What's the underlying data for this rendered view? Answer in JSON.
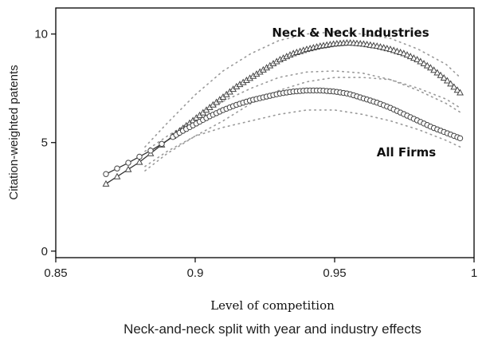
{
  "chart_data": {
    "type": "line",
    "title": "",
    "caption": "Neck-and-neck split with year and industry effects",
    "xlabel": "Level of competition",
    "ylabel": "Citation-weighted patents",
    "xlim": [
      0.85,
      1.0
    ],
    "ylim": [
      -0.3,
      11.2
    ],
    "xticks": [
      0.85,
      0.9,
      0.95,
      1.0
    ],
    "xtick_labels": [
      "0.85",
      "0.9",
      "0.95",
      "1"
    ],
    "yticks": [
      0,
      5,
      10
    ],
    "ytick_labels": [
      "0",
      "5",
      "10"
    ],
    "grid": false,
    "legend": "none",
    "annotations": [
      {
        "text": "Neck & Neck Industries",
        "series": "neck"
      },
      {
        "text": "All Firms",
        "series": "all"
      }
    ],
    "series": [
      {
        "key": "neck",
        "marker": "triangle",
        "color": "#333333",
        "x": [
          0.868,
          0.88,
          0.885,
          0.89,
          0.895,
          0.9,
          0.905,
          0.91,
          0.915,
          0.92,
          0.925,
          0.93,
          0.935,
          0.94,
          0.945,
          0.95,
          0.955,
          0.96,
          0.965,
          0.97,
          0.975,
          0.98,
          0.985,
          0.99,
          0.995
        ],
        "values": [
          3.1,
          4.1,
          4.6,
          5.1,
          5.6,
          6.1,
          6.6,
          7.1,
          7.6,
          8.0,
          8.4,
          8.8,
          9.1,
          9.3,
          9.45,
          9.55,
          9.6,
          9.55,
          9.45,
          9.3,
          9.1,
          8.8,
          8.4,
          7.9,
          7.3
        ]
      },
      {
        "key": "all",
        "marker": "circle",
        "color": "#333333",
        "x": [
          0.868,
          0.875,
          0.88,
          0.885,
          0.89,
          0.895,
          0.9,
          0.905,
          0.91,
          0.915,
          0.92,
          0.925,
          0.93,
          0.935,
          0.94,
          0.945,
          0.95,
          0.955,
          0.96,
          0.965,
          0.97,
          0.975,
          0.98,
          0.985,
          0.99,
          0.995
        ],
        "values": [
          3.55,
          4.0,
          4.35,
          4.7,
          5.1,
          5.5,
          5.85,
          6.2,
          6.5,
          6.75,
          6.95,
          7.1,
          7.25,
          7.35,
          7.4,
          7.4,
          7.35,
          7.25,
          7.05,
          6.85,
          6.6,
          6.3,
          6.0,
          5.7,
          5.45,
          5.2
        ]
      }
    ],
    "confidence_bands": [
      {
        "series": "neck",
        "x": [
          0.882,
          0.89,
          0.9,
          0.91,
          0.92,
          0.93,
          0.94,
          0.95,
          0.96,
          0.97,
          0.98,
          0.99,
          0.995
        ],
        "upper": [
          4.8,
          5.9,
          7.2,
          8.3,
          9.1,
          9.7,
          10.0,
          10.1,
          10.0,
          9.8,
          9.3,
          8.6,
          8.0
        ],
        "lower": [
          3.7,
          4.5,
          5.3,
          6.0,
          6.8,
          7.4,
          7.8,
          8.0,
          8.0,
          7.9,
          7.5,
          7.0,
          6.6
        ]
      },
      {
        "series": "all",
        "x": [
          0.882,
          0.89,
          0.9,
          0.91,
          0.92,
          0.93,
          0.94,
          0.95,
          0.96,
          0.97,
          0.98,
          0.99,
          0.995
        ],
        "upper": [
          4.6,
          5.3,
          6.1,
          6.9,
          7.5,
          8.0,
          8.25,
          8.3,
          8.2,
          7.9,
          7.4,
          6.8,
          6.4
        ],
        "lower": [
          3.9,
          4.6,
          5.3,
          5.7,
          6.0,
          6.3,
          6.5,
          6.5,
          6.3,
          6.0,
          5.6,
          5.1,
          4.8
        ]
      }
    ]
  }
}
